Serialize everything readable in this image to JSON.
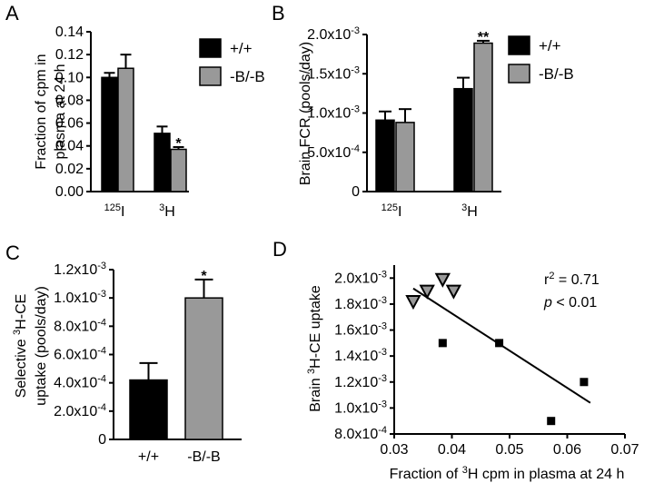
{
  "chart_data": [
    {
      "panel": "A",
      "type": "bar",
      "ylabel_lines": [
        "Fraction of cpm in",
        "plasma at 24 h"
      ],
      "ylim": [
        0,
        0.14
      ],
      "yticks": [
        "0.00",
        "0.02",
        "0.04",
        "0.06",
        "0.08",
        "0.10",
        "0.12",
        "0.14"
      ],
      "yticks_values": [
        0,
        0.02,
        0.04,
        0.06,
        0.08,
        0.1,
        0.12,
        0.14
      ],
      "categories": [
        {
          "sup": "125",
          "base": "I"
        },
        {
          "sup": "3",
          "base": "H"
        }
      ],
      "series": [
        {
          "name": "+/+",
          "color": "#000000",
          "values": [
            0.1,
            0.051
          ],
          "errors": [
            0.004,
            0.006
          ]
        },
        {
          "name": "-B/-B",
          "color": "#999999",
          "values": [
            0.108,
            0.037
          ],
          "errors": [
            0.012,
            0.002
          ]
        }
      ],
      "annotations": [
        {
          "text": "*",
          "category": 1,
          "series": 1
        }
      ],
      "legend": "top-right"
    },
    {
      "panel": "B",
      "type": "bar",
      "ylabel": "Brain FCR (pools/day)",
      "ylim": [
        0,
        0.002
      ],
      "yticks": [
        {
          "value": 0,
          "base": "0",
          "sup": ""
        },
        {
          "value": 0.0005,
          "base": "5.0x10",
          "sup": "-4"
        },
        {
          "value": 0.001,
          "base": "1.0x10",
          "sup": "-3"
        },
        {
          "value": 0.0015,
          "base": "1.5x10",
          "sup": "-3"
        },
        {
          "value": 0.002,
          "base": "2.0x10",
          "sup": "-3"
        }
      ],
      "categories": [
        {
          "sup": "125",
          "base": "I"
        },
        {
          "sup": "3",
          "base": "H"
        }
      ],
      "series": [
        {
          "name": "+/+",
          "color": "#000000",
          "values": [
            0.00091,
            0.00131
          ],
          "errors": [
            0.00011,
            0.00014
          ]
        },
        {
          "name": "-B/-B",
          "color": "#999999",
          "values": [
            0.00088,
            0.00189
          ],
          "errors": [
            0.00017,
            3e-05
          ]
        }
      ],
      "annotations": [
        {
          "text": "**",
          "category": 1,
          "series": 1
        }
      ],
      "legend": "top-right"
    },
    {
      "panel": "C",
      "type": "bar",
      "ylabel_lines": [
        {
          "pre": "Selective ",
          "sup": "3",
          "post": "H-CE"
        },
        {
          "pre": "uptake (pools/day)",
          "sup": "",
          "post": ""
        }
      ],
      "ylim": [
        0,
        0.0012
      ],
      "yticks": [
        {
          "value": 0,
          "base": "0",
          "sup": ""
        },
        {
          "value": 0.0002,
          "base": "2.0x10",
          "sup": "-4"
        },
        {
          "value": 0.0004,
          "base": "4.0x10",
          "sup": "-4"
        },
        {
          "value": 0.0006,
          "base": "6.0x10",
          "sup": "-4"
        },
        {
          "value": 0.0008,
          "base": "8.0x10",
          "sup": "-4"
        },
        {
          "value": 0.001,
          "base": "1.0x10",
          "sup": "-3"
        },
        {
          "value": 0.0012,
          "base": "1.2x10",
          "sup": "-3"
        }
      ],
      "categories": [
        "+/+",
        "-B/-B"
      ],
      "values": [
        0.00042,
        0.001
      ],
      "errors": [
        0.00012,
        0.00013
      ],
      "colors": [
        "#000000",
        "#999999"
      ],
      "annotations": [
        {
          "text": "*",
          "category": 1
        }
      ]
    },
    {
      "panel": "D",
      "type": "scatter",
      "xlabel": {
        "pre": "Fraction of ",
        "sup": "3",
        "post": "H cpm in plasma at 24 h"
      },
      "ylabel": {
        "pre": "Brain  ",
        "sup": "3",
        "post": "H-CE  uptake"
      },
      "xlim": [
        0.03,
        0.07
      ],
      "ylim": [
        0.0008,
        0.0021
      ],
      "xticks": [
        "0.03",
        "0.04",
        "0.05",
        "0.06",
        "0.07"
      ],
      "xticks_values": [
        0.03,
        0.04,
        0.05,
        0.06,
        0.07
      ],
      "yticks": [
        {
          "value": 0.0008,
          "base": "8.0x10",
          "sup": "-4"
        },
        {
          "value": 0.001,
          "base": "1.0x10",
          "sup": "-3"
        },
        {
          "value": 0.0012,
          "base": "1.2x10",
          "sup": "-3"
        },
        {
          "value": 0.0014,
          "base": "1.4x10",
          "sup": "-3"
        },
        {
          "value": 0.0016,
          "base": "1.6x10",
          "sup": "-3"
        },
        {
          "value": 0.0018,
          "base": "1.8x10",
          "sup": "-3"
        },
        {
          "value": 0.002,
          "base": "2.0x10",
          "sup": "-3"
        }
      ],
      "series": [
        {
          "marker": "square",
          "color": "#000000",
          "points": [
            [
              0.0384,
              0.0015
            ],
            [
              0.0482,
              0.0015
            ],
            [
              0.0572,
              0.0009
            ],
            [
              0.0629,
              0.0012
            ]
          ]
        },
        {
          "marker": "triangle-down",
          "color": "#999999",
          "points": [
            [
              0.0333,
              0.00182
            ],
            [
              0.0357,
              0.0019
            ],
            [
              0.0384,
              0.00199
            ],
            [
              0.0403,
              0.0019
            ]
          ]
        }
      ],
      "fit_line": [
        [
          0.0333,
          0.00192
        ],
        [
          0.064,
          0.00104
        ]
      ],
      "annotations": {
        "r2": {
          "pre": "r",
          "sup": "2",
          "post": " = 0.71"
        },
        "p": {
          "italic": "p",
          "post": " < 0.01"
        }
      }
    }
  ]
}
